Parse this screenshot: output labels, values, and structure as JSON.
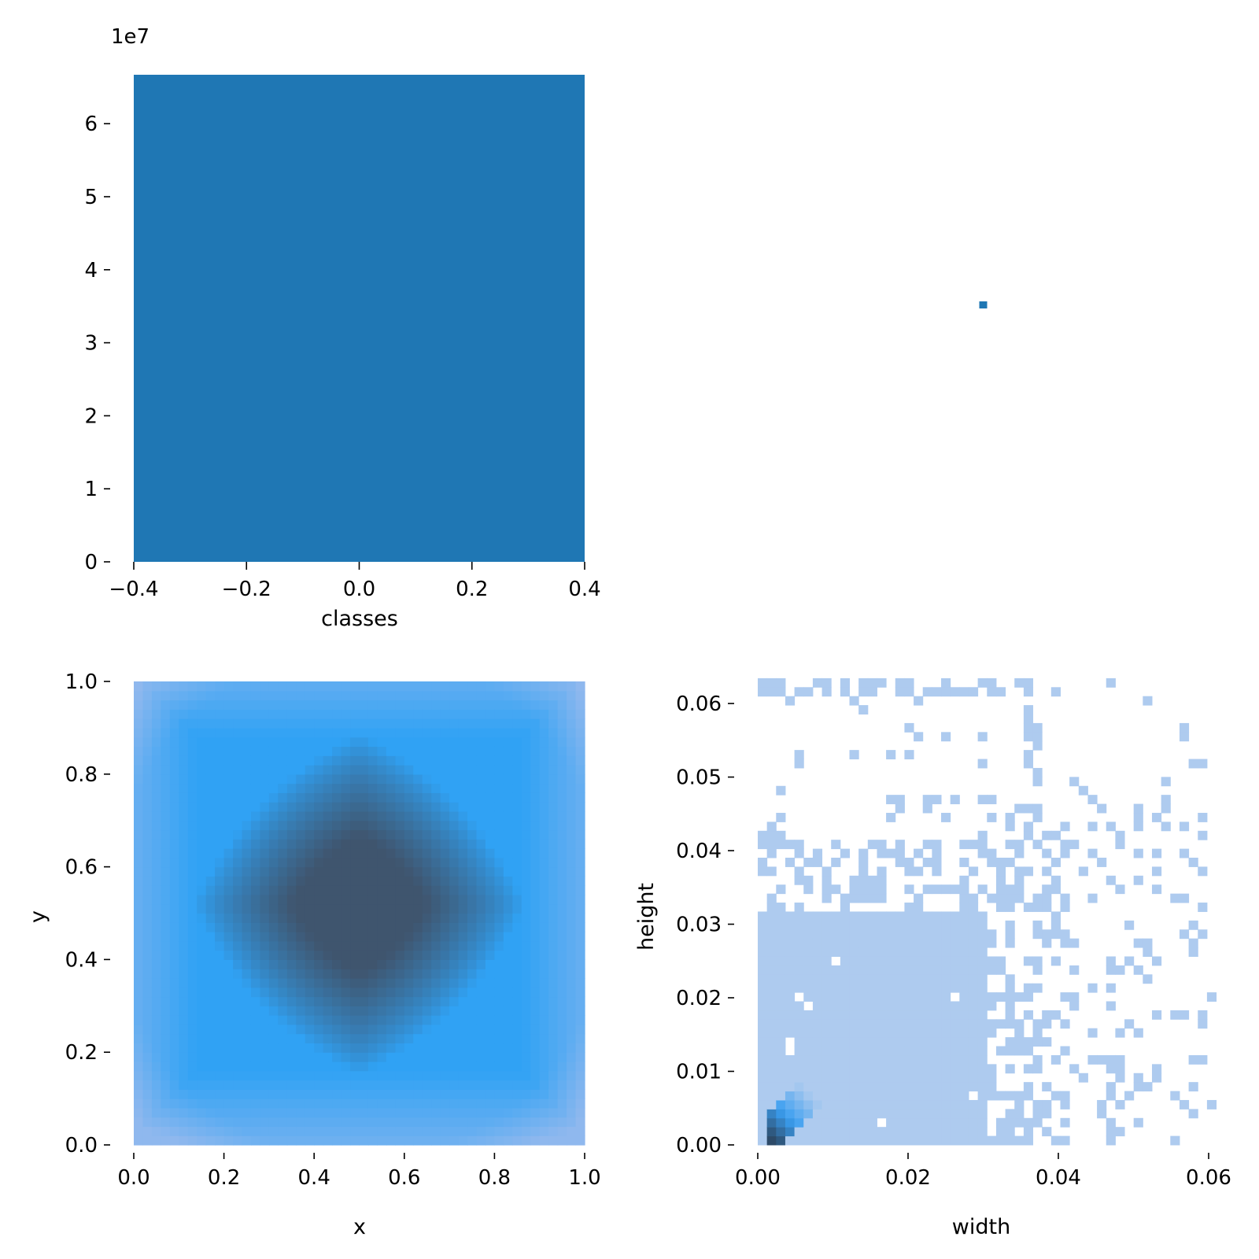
{
  "chart_data": [
    {
      "id": "classes-hist",
      "type": "bar",
      "xlabel": "classes",
      "ylabel": "",
      "xlim": [
        -0.4,
        0.4
      ],
      "ylim": [
        0,
        6.67
      ],
      "y_offset_text": "1e7",
      "x_ticks": [
        -0.4,
        -0.2,
        0.0,
        0.2,
        0.4
      ],
      "x_tick_labels": [
        "−0.4",
        "−0.2",
        "0.0",
        "0.2",
        "0.4"
      ],
      "y_ticks": [
        0,
        1,
        2,
        3,
        4,
        5,
        6
      ],
      "y_tick_labels": [
        "0",
        "1",
        "2",
        "3",
        "4",
        "5",
        "6"
      ],
      "bars": [
        {
          "x0": -0.4,
          "x1": 0.4,
          "value": 6.67
        }
      ],
      "color": "#1f77b4"
    },
    {
      "id": "width-point",
      "type": "scatter",
      "xlabel": "",
      "ylabel": "",
      "points": [
        {
          "x": 0.03,
          "y": 0.5
        }
      ],
      "color": "#1f77b4"
    },
    {
      "id": "xy-hist2d",
      "type": "heatmap",
      "xlabel": "x",
      "ylabel": "y",
      "xlim": [
        0,
        1
      ],
      "ylim": [
        0,
        1
      ],
      "x_ticks": [
        0.0,
        0.2,
        0.4,
        0.6,
        0.8,
        1.0
      ],
      "x_tick_labels": [
        "0.0",
        "0.2",
        "0.4",
        "0.6",
        "0.8",
        "1.0"
      ],
      "y_ticks": [
        0.0,
        0.2,
        0.4,
        0.6,
        0.8,
        1.0
      ],
      "y_tick_labels": [
        "0.0",
        "0.2",
        "0.4",
        "0.6",
        "0.8",
        "1.0"
      ],
      "bins": 50,
      "density_model": "peak density near (0.5, 0.5), diamond-shaped falloff toward the edges",
      "colors": {
        "low": "#8fb8ee",
        "mid": "#30a2f4",
        "high": "#3f556e"
      }
    },
    {
      "id": "wh-hist2d",
      "type": "heatmap",
      "xlabel": "width",
      "ylabel": "height",
      "xlim": [
        0,
        0.06
      ],
      "ylim": [
        0,
        0.063
      ],
      "x_ticks": [
        0.0,
        0.02,
        0.04,
        0.06
      ],
      "x_tick_labels": [
        "0.00",
        "0.02",
        "0.04",
        "0.06"
      ],
      "y_ticks": [
        0.0,
        0.01,
        0.02,
        0.03,
        0.04,
        0.05,
        0.06
      ],
      "y_tick_labels": [
        "0.00",
        "0.01",
        "0.02",
        "0.03",
        "0.04",
        "0.05",
        "0.06"
      ],
      "bin_size": 0.00122,
      "dense_region": {
        "width_max": 0.031,
        "height_max": 0.032
      },
      "hotspot": {
        "width_range": [
          0.001,
          0.008
        ],
        "height_range": [
          0.0,
          0.008
        ]
      },
      "colors": {
        "sparse": "#aecbef",
        "mid": "#3a9ef0",
        "high": "#2d4a68"
      }
    }
  ]
}
